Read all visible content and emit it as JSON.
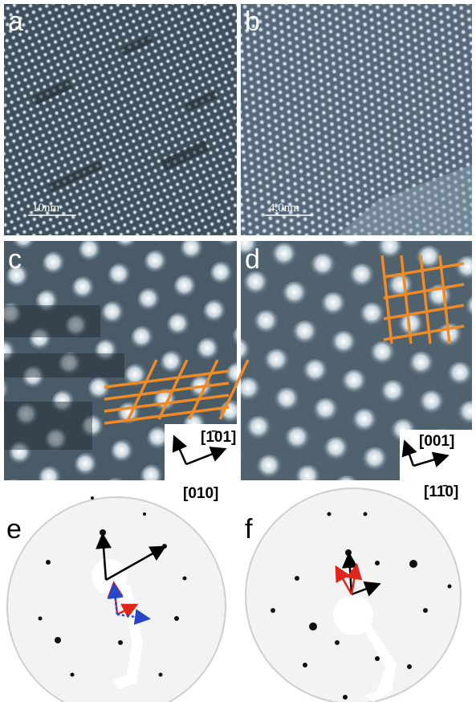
{
  "panels": [
    {
      "label": "a",
      "scale_bar": "10nm"
    },
    {
      "label": "b",
      "scale_bar": "4.0nm"
    },
    {
      "label": "c",
      "directions": [
        "[1̄01]",
        "[010]"
      ]
    },
    {
      "label": "d",
      "directions": [
        "[001]",
        "[11̄0]"
      ]
    },
    {
      "label": "e"
    },
    {
      "label": "f"
    }
  ]
}
